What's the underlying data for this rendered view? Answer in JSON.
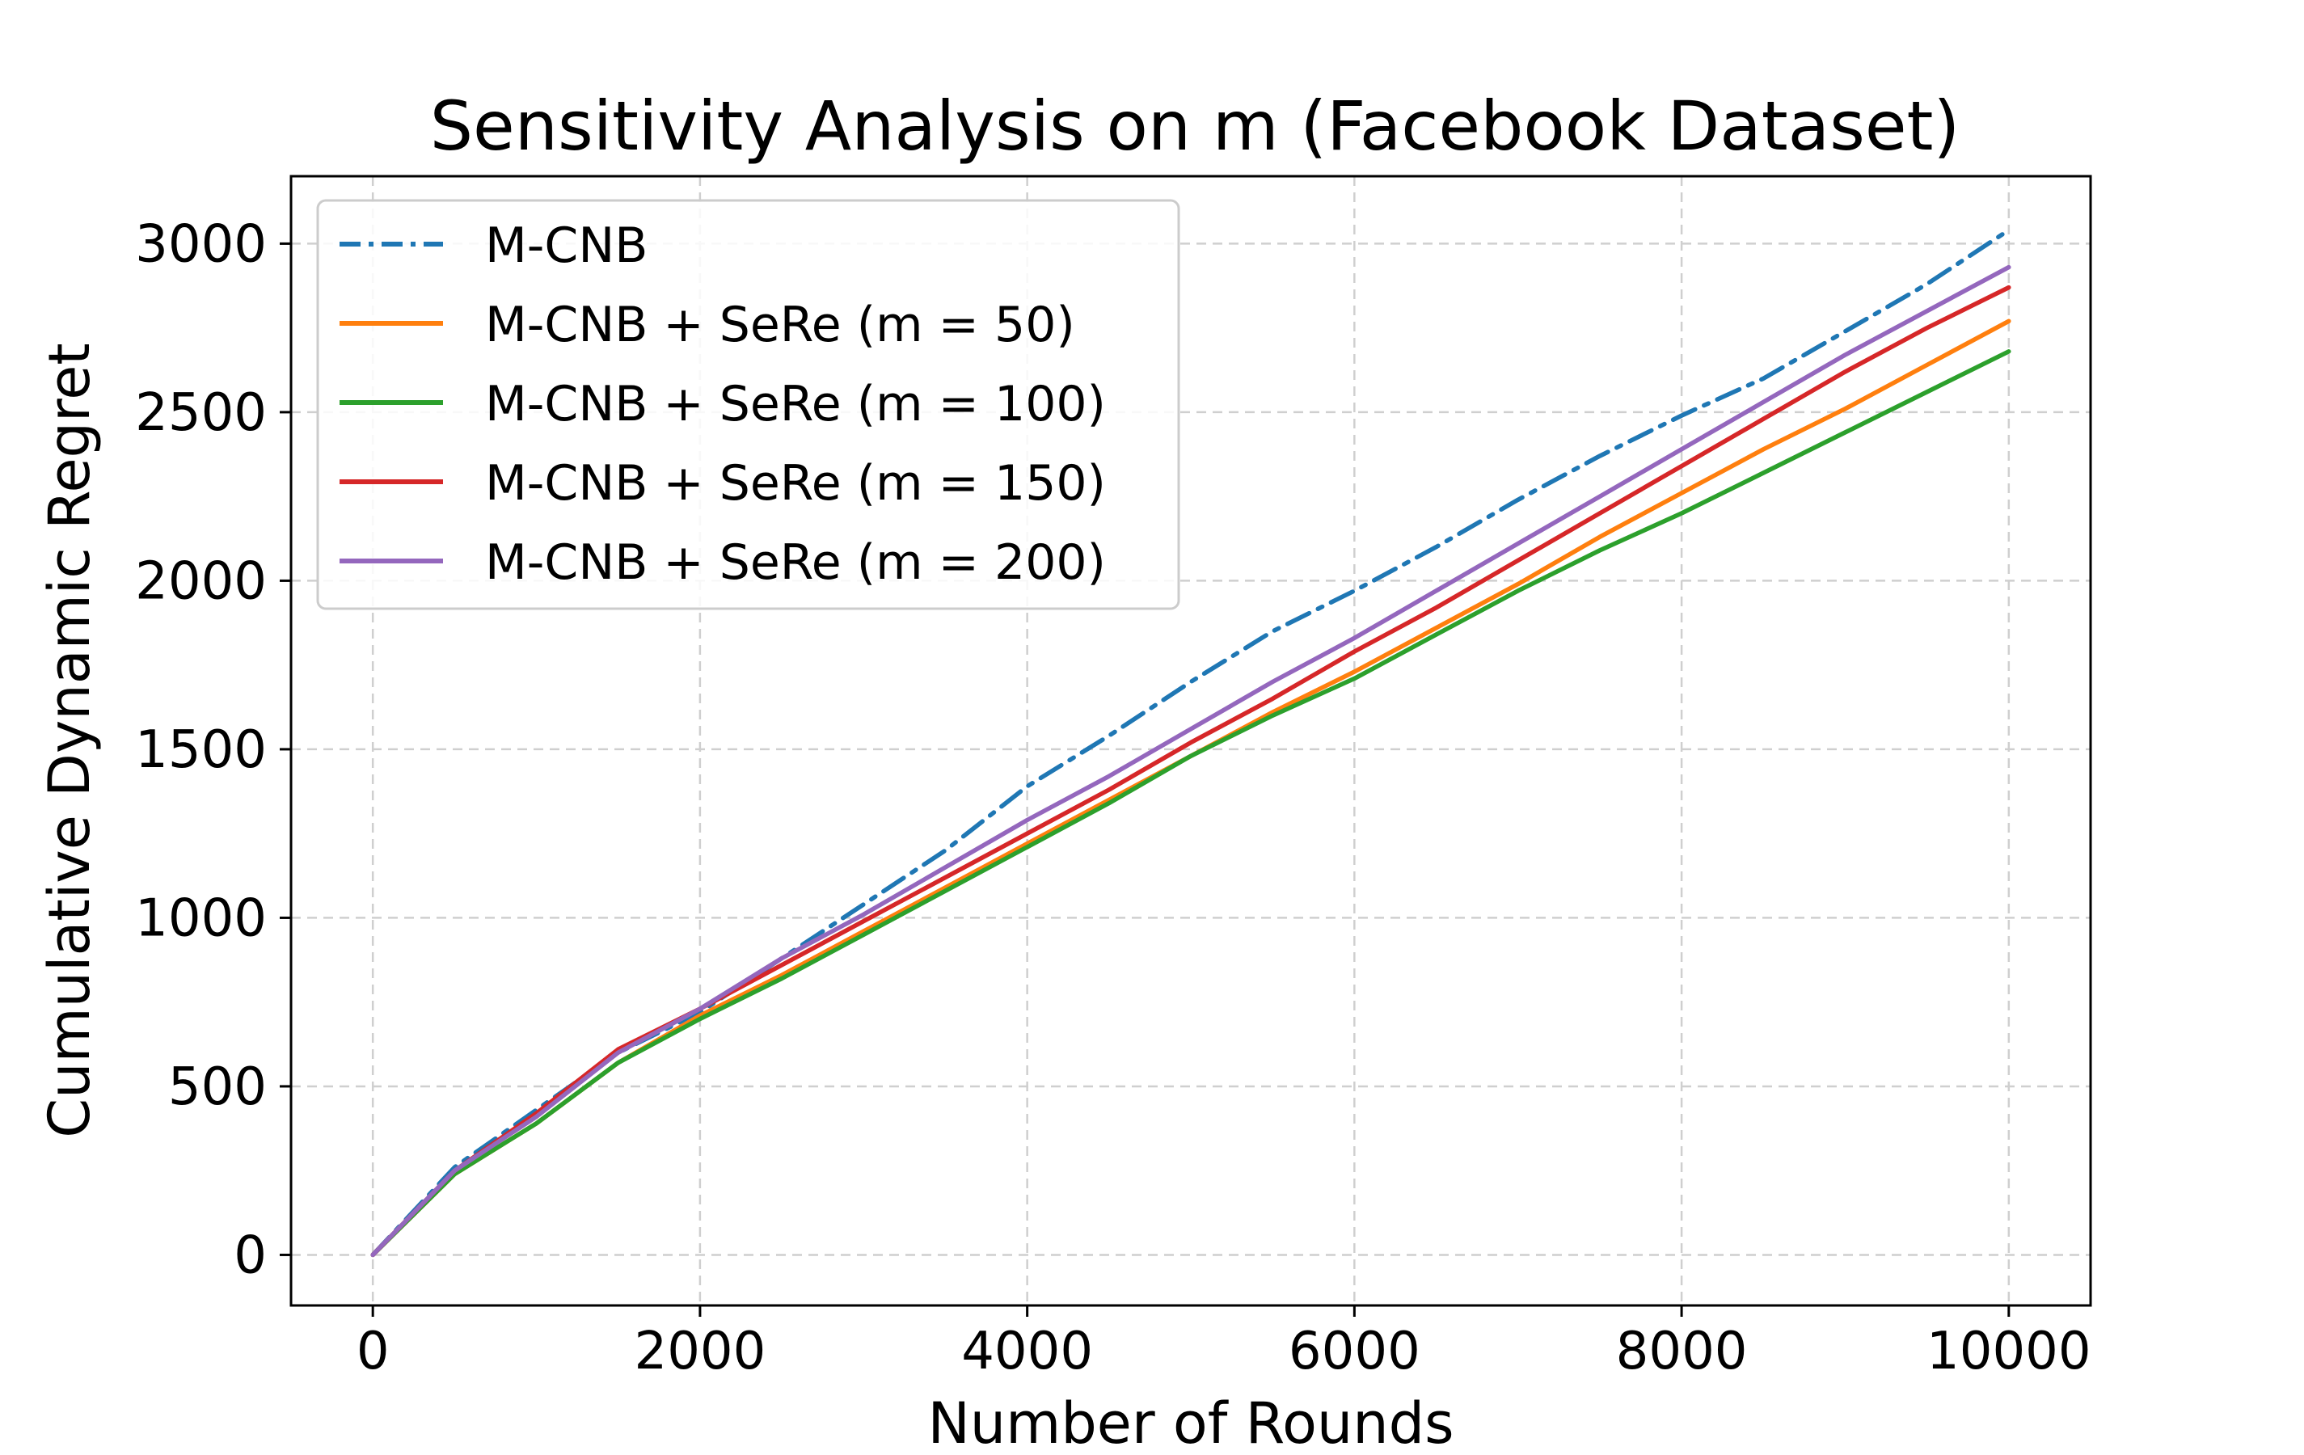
{
  "chart_data": {
    "type": "line",
    "title": "Sensitivity Analysis on m (Facebook Dataset)",
    "xlabel": "Number of Rounds",
    "ylabel": "Cumulative Dynamic Regret",
    "xlim": [
      -500,
      10500
    ],
    "ylim": [
      -150,
      3200
    ],
    "xticks": [
      0,
      2000,
      4000,
      6000,
      8000,
      10000
    ],
    "yticks": [
      0,
      500,
      1000,
      1500,
      2000,
      2500,
      3000
    ],
    "grid": true,
    "legend_position": "top-left",
    "x": [
      0,
      500,
      1000,
      1500,
      2000,
      2500,
      3000,
      3500,
      4000,
      4500,
      5000,
      5500,
      6000,
      6500,
      7000,
      7500,
      8000,
      8500,
      9000,
      9500,
      10000
    ],
    "series": [
      {
        "name": "M-CNB",
        "color": "#1f77b4",
        "style": "dashdot",
        "values": [
          0,
          260,
          430,
          600,
          720,
          880,
          1040,
          1200,
          1390,
          1540,
          1700,
          1850,
          1970,
          2100,
          2240,
          2370,
          2490,
          2600,
          2740,
          2880,
          3040
        ]
      },
      {
        "name": "M-CNB + SeRe (m = 50)",
        "color": "#ff7f0e",
        "style": "solid",
        "values": [
          0,
          240,
          390,
          570,
          710,
          830,
          960,
          1090,
          1220,
          1350,
          1480,
          1610,
          1730,
          1860,
          1990,
          2130,
          2260,
          2390,
          2510,
          2640,
          2770
        ]
      },
      {
        "name": "M-CNB + SeRe (m = 100)",
        "color": "#2ca02c",
        "style": "solid",
        "values": [
          0,
          240,
          390,
          570,
          700,
          820,
          950,
          1080,
          1210,
          1340,
          1480,
          1600,
          1710,
          1840,
          1970,
          2090,
          2200,
          2320,
          2440,
          2560,
          2680
        ]
      },
      {
        "name": "M-CNB + SeRe (m = 150)",
        "color": "#d62728",
        "style": "solid",
        "values": [
          0,
          250,
          420,
          610,
          730,
          860,
          990,
          1120,
          1250,
          1380,
          1520,
          1650,
          1790,
          1920,
          2060,
          2200,
          2340,
          2480,
          2620,
          2750,
          2870
        ]
      },
      {
        "name": "M-CNB + SeRe (m = 200)",
        "color": "#9467bd",
        "style": "solid",
        "values": [
          0,
          250,
          410,
          600,
          730,
          880,
          1010,
          1150,
          1290,
          1420,
          1560,
          1700,
          1830,
          1970,
          2110,
          2250,
          2390,
          2530,
          2670,
          2800,
          2930
        ]
      }
    ]
  }
}
